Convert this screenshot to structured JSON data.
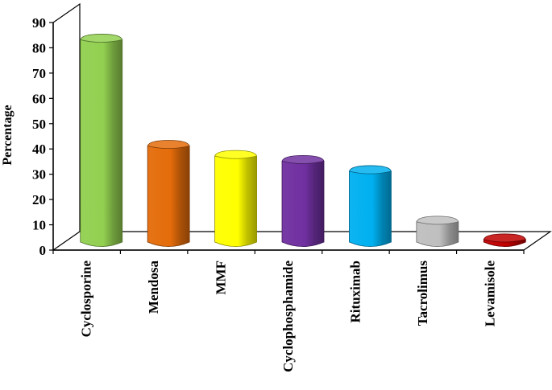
{
  "chart_data": {
    "type": "bar",
    "style": "3d-cylinder-column",
    "categories": [
      "Cyclosporine",
      "Mendosa",
      "MMF",
      "Cyclophosphamide",
      "Rituximab",
      "Tacrolimus",
      "Levamisole"
    ],
    "values": [
      80,
      38,
      34,
      32,
      28,
      8,
      1
    ],
    "colors": [
      "#92d050",
      "#e46c0a",
      "#ffff00",
      "#7030a0",
      "#00b0f0",
      "#bfbfbf",
      "#c00000"
    ],
    "ylabel": "Percentage",
    "xlabel": "",
    "title": "",
    "ylim": [
      0,
      90
    ],
    "yticks": [
      0,
      10,
      20,
      30,
      40,
      50,
      60,
      70,
      80,
      90
    ],
    "grid": false,
    "legend": "none"
  }
}
